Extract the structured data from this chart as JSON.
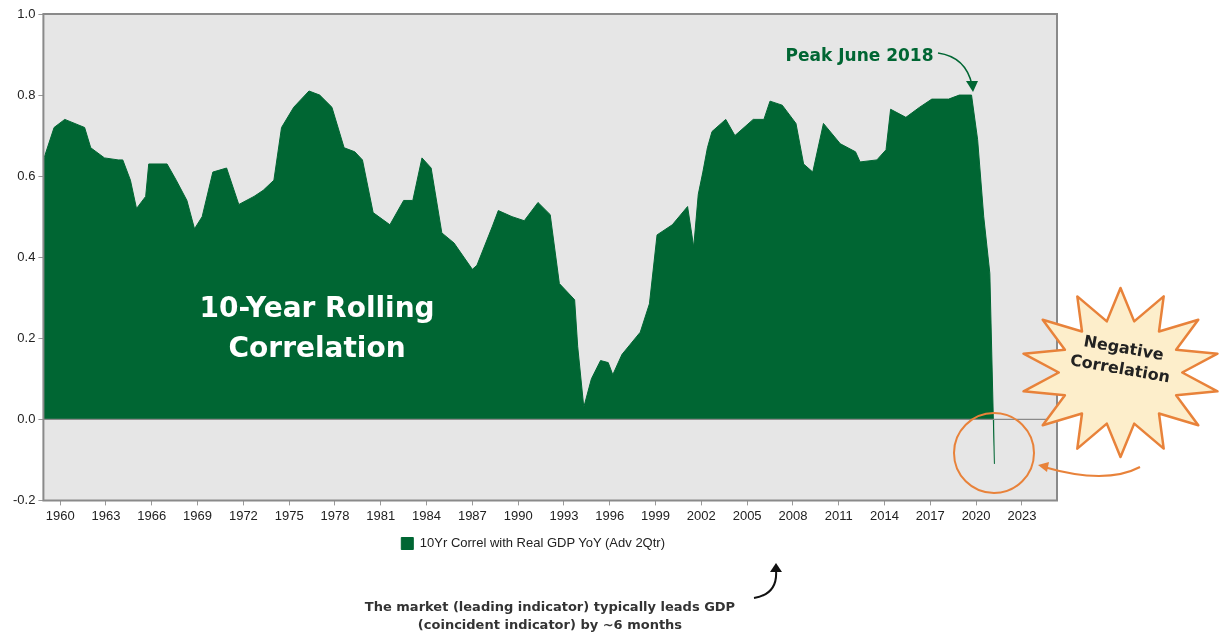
{
  "chart_data": {
    "type": "area",
    "xlim": [
      1958.9,
      2025.3
    ],
    "xticks": [
      1960,
      1963,
      1966,
      1969,
      1972,
      1975,
      1978,
      1981,
      1984,
      1987,
      1990,
      1993,
      1996,
      1999,
      2002,
      2005,
      2008,
      2011,
      2014,
      2017,
      2020,
      2023
    ],
    "ylim": [
      -0.2,
      1.0
    ],
    "yticks": [
      {
        "value": -0.2,
        "label": "-0.2"
      },
      {
        "value": 0,
        "label": "0.0"
      },
      {
        "value": 0.2,
        "label": "0.2"
      },
      {
        "value": 0.4,
        "label": "0.4"
      },
      {
        "value": 0.6,
        "label": "0.6"
      },
      {
        "value": 0.8,
        "label": "0.8"
      },
      {
        "value": 1.0,
        "label": "1.0"
      }
    ],
    "grid": false,
    "legend": "bottom",
    "ref_lines": [
      {
        "axis": "y",
        "value": 0,
        "color": "#8a8a8a"
      }
    ],
    "series": [
      {
        "name": "10Yr Correl with Real GDP YoY (Adv 2Qtr)",
        "color": "#006633",
        "x": [
          1958.9,
          1959.6,
          1960.3,
          1961.6,
          1962.0,
          1962.9,
          1963.8,
          1964.1,
          1964.6,
          1965.0,
          1965.6,
          1965.8,
          1967.0,
          1967.6,
          1968.3,
          1968.8,
          1969.3,
          1970.0,
          1970.9,
          1971.7,
          1972.7,
          1973.3,
          1974.0,
          1974.5,
          1975.3,
          1976.3,
          1977.0,
          1977.8,
          1978.6,
          1979.3,
          1979.8,
          1980.5,
          1981.6,
          1982.5,
          1983.1,
          1983.7,
          1984.3,
          1985.0,
          1985.8,
          1987.0,
          1987.3,
          1988.3,
          1988.7,
          1989.6,
          1990.4,
          1991.3,
          1992.1,
          1992.7,
          1993.7,
          1993.9,
          1994.3,
          1994.8,
          1995.4,
          1995.9,
          1996.2,
          1996.8,
          1998.0,
          1998.6,
          1999.1,
          2000.1,
          2001.1,
          2001.5,
          2001.8,
          2002.1,
          2002.4,
          2002.7,
          2003.6,
          2004.2,
          2005.4,
          2006.1,
          2006.5,
          2007.3,
          2008.2,
          2008.7,
          2009.3,
          2010.0,
          2011.1,
          2012.1,
          2012.4,
          2013.5,
          2014.1,
          2014.4,
          2015.4,
          2016.3,
          2017.1,
          2018.2,
          2018.9,
          2019.7,
          2020.1,
          2020.5,
          2020.9,
          2021.2
        ],
        "values": [
          0.64,
          0.72,
          0.74,
          0.72,
          0.67,
          0.645,
          0.64,
          0.64,
          0.59,
          0.52,
          0.55,
          0.63,
          0.63,
          0.59,
          0.54,
          0.47,
          0.5,
          0.61,
          0.62,
          0.53,
          0.55,
          0.565,
          0.59,
          0.72,
          0.77,
          0.81,
          0.8,
          0.77,
          0.67,
          0.66,
          0.64,
          0.51,
          0.48,
          0.54,
          0.54,
          0.645,
          0.62,
          0.46,
          0.435,
          0.37,
          0.38,
          0.475,
          0.515,
          0.5,
          0.49,
          0.535,
          0.505,
          0.335,
          0.295,
          0.18,
          0.03,
          0.1,
          0.145,
          0.14,
          0.11,
          0.16,
          0.215,
          0.285,
          0.455,
          0.48,
          0.525,
          0.425,
          0.555,
          0.61,
          0.67,
          0.71,
          0.74,
          0.7,
          0.74,
          0.74,
          0.785,
          0.775,
          0.73,
          0.63,
          0.61,
          0.73,
          0.68,
          0.66,
          0.635,
          0.64,
          0.665,
          0.765,
          0.745,
          0.77,
          0.79,
          0.79,
          0.8,
          0.8,
          0.69,
          0.5,
          0.36,
          -0.11
        ]
      }
    ],
    "annotations": [
      "10-Year Rolling Correlation",
      {
        "text": "Peak June 2018",
        "x": 2019.7,
        "y": 0.8
      },
      "Negative Correlation",
      "The market (leading indicator) typically leads GDP (coincident indicator) by ~6 months"
    ]
  }
}
